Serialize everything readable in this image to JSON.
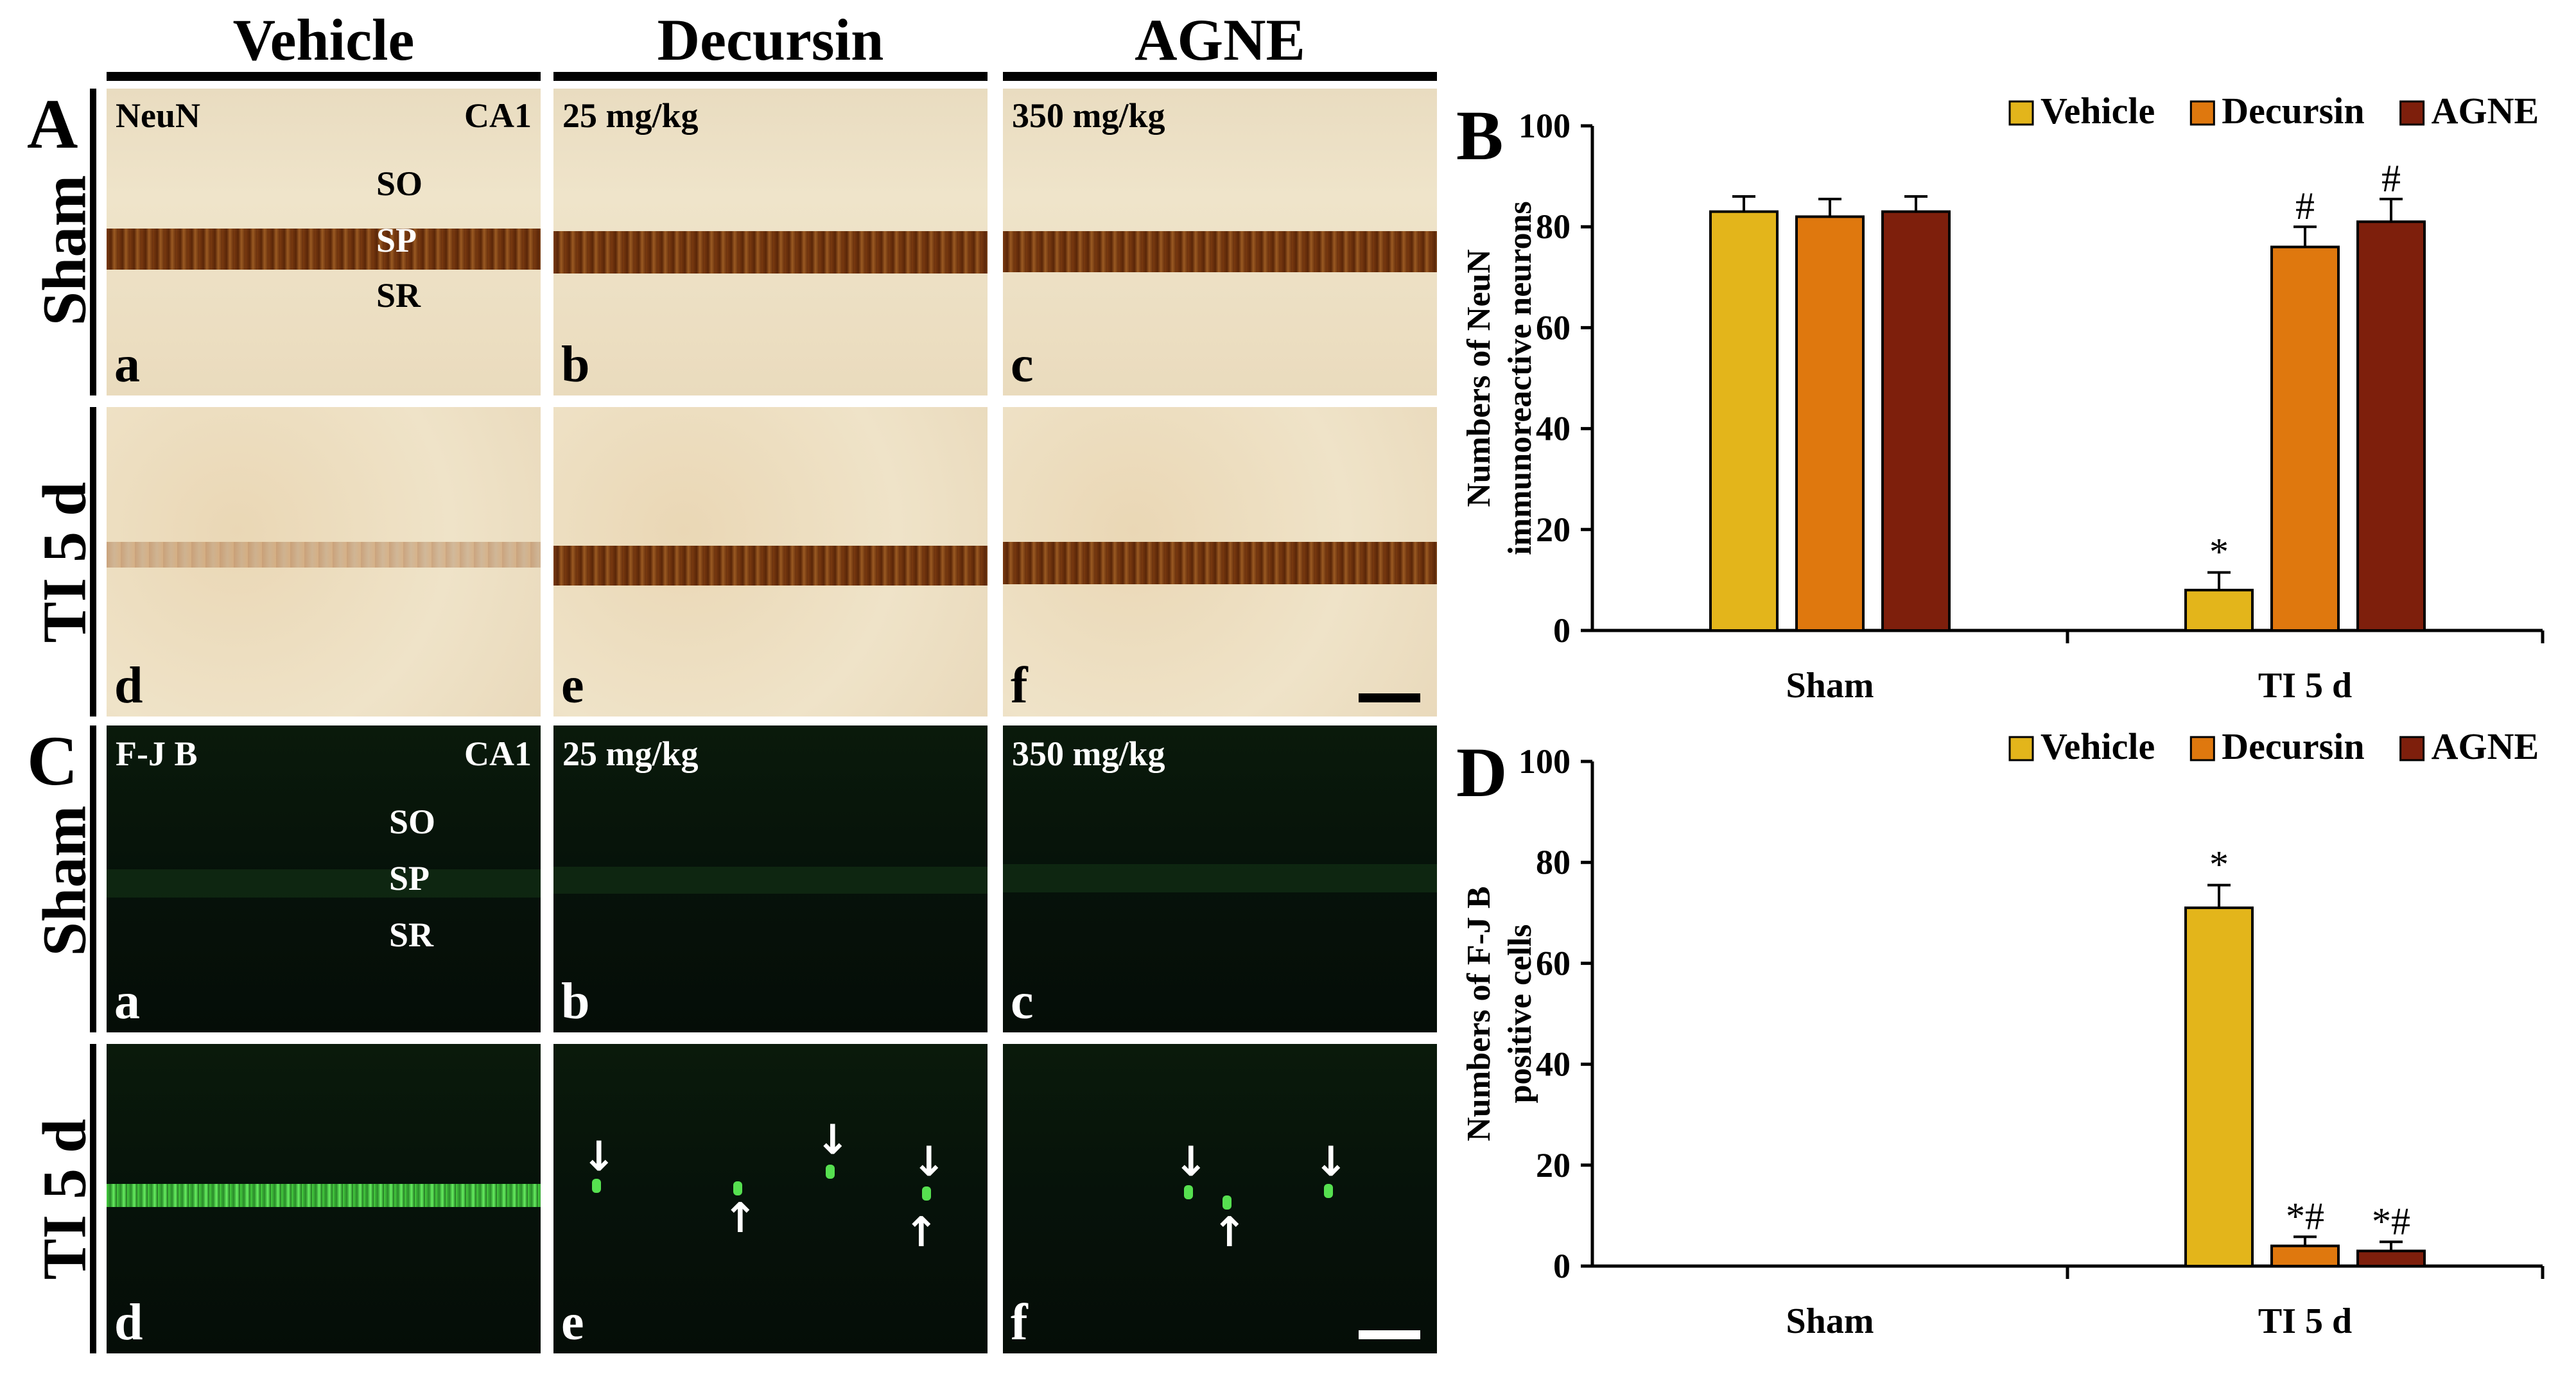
{
  "columns": [
    "Vehicle",
    "Decursin",
    "AGNE"
  ],
  "panel_letters": {
    "A": "A",
    "B": "B",
    "C": "C",
    "D": "D"
  },
  "row_labels": {
    "sham": "Sham",
    "ti": "TI 5 d"
  },
  "neun_panels": {
    "stain": "NeuN",
    "region": "CA1",
    "doses": {
      "decursin": "25 mg/kg",
      "agne": "350 mg/kg"
    },
    "layers": [
      "SO",
      "SP",
      "SR"
    ],
    "sublabels": [
      "a",
      "b",
      "c",
      "d",
      "e",
      "f"
    ]
  },
  "fjb_panels": {
    "stain": "F-J B",
    "region": "CA1",
    "doses": {
      "decursin": "25 mg/kg",
      "agne": "350 mg/kg"
    },
    "layers": [
      "SO",
      "SP",
      "SR"
    ],
    "sublabels": [
      "a",
      "b",
      "c",
      "d",
      "e",
      "f"
    ],
    "arrow_glyphs": {
      "down": "↓",
      "up": "↑"
    }
  },
  "colors": {
    "vehicle": "#E3B51B",
    "decursin": "#DF780E",
    "agne": "#7E1F0C",
    "fjb_green": "#46d040",
    "neun_brown": "#7a3a10"
  },
  "chart_data": [
    {
      "id": "B",
      "type": "bar",
      "ylabel_lines": [
        "Numbers of NeuN",
        "immunoreactive neurons"
      ],
      "categories": [
        "Sham",
        "TI 5 d"
      ],
      "ylim": [
        0,
        100
      ],
      "yticks": [
        0,
        20,
        40,
        60,
        80,
        100
      ],
      "legend_position": "top-right",
      "series": [
        {
          "name": "Vehicle",
          "values": [
            83,
            8
          ],
          "errors": [
            3,
            3.5
          ],
          "annotations": [
            "",
            "*"
          ]
        },
        {
          "name": "Decursin",
          "values": [
            82,
            76
          ],
          "errors": [
            3.5,
            4
          ],
          "annotations": [
            "",
            "#"
          ]
        },
        {
          "name": "AGNE",
          "values": [
            83,
            81
          ],
          "errors": [
            3,
            4.5
          ],
          "annotations": [
            "",
            "#"
          ]
        }
      ]
    },
    {
      "id": "D",
      "type": "bar",
      "ylabel_lines": [
        "Numbers of F-J B",
        "positive cells"
      ],
      "categories": [
        "Sham",
        "TI 5 d"
      ],
      "ylim": [
        0,
        100
      ],
      "yticks": [
        0,
        20,
        40,
        60,
        80,
        100
      ],
      "legend_position": "top-right",
      "series": [
        {
          "name": "Vehicle",
          "values": [
            0,
            71
          ],
          "errors": [
            0,
            4.5
          ],
          "annotations": [
            "",
            "*"
          ]
        },
        {
          "name": "Decursin",
          "values": [
            0,
            4
          ],
          "errors": [
            0,
            1.8
          ],
          "annotations": [
            "",
            "*#"
          ]
        },
        {
          "name": "AGNE",
          "values": [
            0,
            3
          ],
          "errors": [
            0,
            1.8
          ],
          "annotations": [
            "",
            "*#"
          ]
        }
      ]
    }
  ]
}
